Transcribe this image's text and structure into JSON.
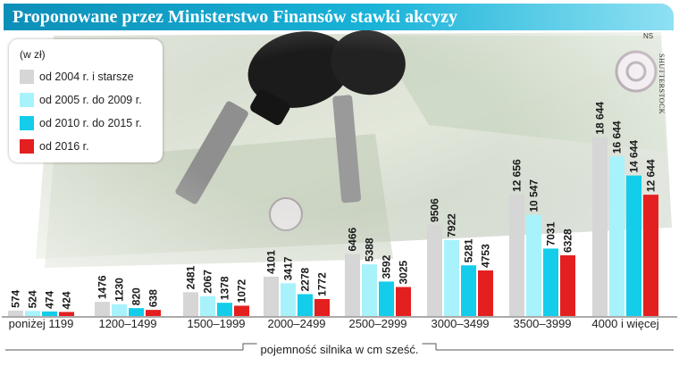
{
  "header": {
    "title": "Proponowane przez Ministerstwo Finansów stawki akcyzy"
  },
  "source": {
    "tag": "NS",
    "credit": "SHUTTERSTOCK"
  },
  "chart_data": {
    "type": "bar",
    "unit": "(w zł)",
    "xlabel": "pojemność silnika w cm sześć.",
    "categories": [
      "poniżej 1199",
      "1200–1499",
      "1500–1999",
      "2000–2499",
      "2500–2999",
      "3000–3499",
      "3500–3999",
      "4000 i więcej"
    ],
    "series": [
      {
        "name": "od 2004 r. i starsze",
        "color": "#d6d6d6",
        "values": [
          574,
          1476,
          2481,
          4101,
          6466,
          9506,
          12656,
          18644
        ],
        "labels": [
          "574",
          "1476",
          "2481",
          "4101",
          "6466",
          "9506",
          "12 656",
          "18 644"
        ]
      },
      {
        "name": "od 2005 r. do 2009 r.",
        "color": "#a8f2fb",
        "values": [
          524,
          1230,
          2067,
          3417,
          5388,
          7922,
          10547,
          16644
        ],
        "labels": [
          "524",
          "1230",
          "2067",
          "3417",
          "5388",
          "7922",
          "10 547",
          "16 644"
        ]
      },
      {
        "name": "od 2010 r. do 2015 r.",
        "color": "#13cdea",
        "values": [
          474,
          820,
          1378,
          2278,
          3592,
          5281,
          7031,
          14644
        ],
        "labels": [
          "474",
          "820",
          "1378",
          "2278",
          "3592",
          "5281",
          "7031",
          "14 644"
        ]
      },
      {
        "name": "od 2016 r.",
        "color": "#e41f1f",
        "values": [
          424,
          638,
          1072,
          1772,
          3025,
          4753,
          6328,
          12644
        ],
        "labels": [
          "424",
          "638",
          "1072",
          "1772",
          "3025",
          "4753",
          "6328",
          "12 644"
        ]
      }
    ],
    "grid": false,
    "legend_position": "top-left"
  }
}
